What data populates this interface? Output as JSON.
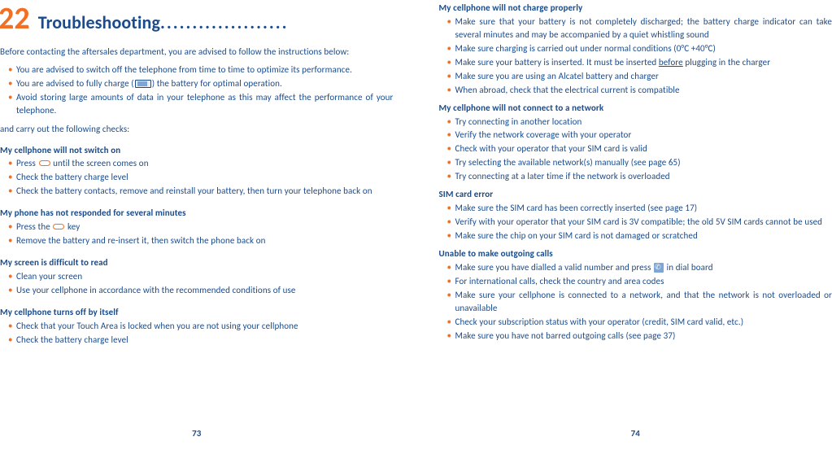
{
  "colors": {
    "text": "#1a4b8c",
    "accent": "#f36f21",
    "background": "#ffffff"
  },
  "leftPage": {
    "chapterNumber": "22",
    "chapterTitle": "Troubleshooting",
    "chapterDots": "....................",
    "intro1": "Before contacting the aftersales department, you are advised to follow the instructions below:",
    "advice1": "You are advised to switch off the telephone from time to time to optimize its performance.",
    "advice2_pre": "You are advised to fully charge (",
    "advice2_post": ") the battery for optimal operation.",
    "advice3": "Avoid storing large amounts of data in your telephone as this may affect the performance of your telephone.",
    "intro2": "and carry out the following checks:",
    "s1_title": "My cellphone will not switch on",
    "s1_b1_pre": "Press ",
    "s1_b1_post": " until the screen comes on",
    "s1_b2": "Check the battery charge level",
    "s1_b3": "Check the battery contacts, remove and reinstall your battery, then turn your telephone back on",
    "s2_title": "My phone has not responded for several minutes",
    "s2_b1_pre": "Press the ",
    "s2_b1_post": " key",
    "s2_b2": "Remove the battery and re-insert it, then switch the phone back on",
    "s3_title": "My screen is difficult to read",
    "s3_b1": "Clean your screen",
    "s3_b2": "Use your cellphone in accordance with the recommended conditions of use",
    "s4_title": "My cellphone turns off by itself",
    "s4_b1": "Check that your Touch Area is locked when you are not using your cellphone",
    "s4_b2": "Check the battery charge level",
    "pageNumber": "73"
  },
  "rightPage": {
    "s5_title": "My cellphone will not charge properly",
    "s5_b1": "Make sure that your battery is not completely discharged; the battery charge indicator can take several minutes and may be accompanied by a quiet whistling sound",
    "s5_b2": "Make sure charging is carried out under normal conditions (0°C +40°C)",
    "s5_b3_pre": "Make sure your battery is inserted. It must be inserted ",
    "s5_b3_underline": "before",
    "s5_b3_post": " plugging in the charger",
    "s5_b4": "Make sure you are using an Alcatel battery and charger",
    "s5_b5": "When abroad, check that the electrical current is compatible",
    "s6_title": "My cellphone will not connect to a network",
    "s6_b1": "Try connecting in another location",
    "s6_b2": "Verify the network coverage with your operator",
    "s6_b3": "Check with your operator that your SIM card is valid",
    "s6_b4": "Try selecting the available network(s) manually (see page 65)",
    "s6_b5": "Try connecting at a later time if the network is overloaded",
    "s7_title": "SIM card error",
    "s7_b1": "Make sure the SIM card has been correctly inserted (see page 17)",
    "s7_b2": "Verify with your operator that your SIM card is 3V compatible; the old 5V SIM cards cannot be used",
    "s7_b3": "Make sure the chip on your SIM card is not damaged or scratched",
    "s8_title": "Unable to make outgoing calls",
    "s8_b1_pre": "Make sure you have dialled a valid number and press ",
    "s8_b1_post": " in dial board",
    "s8_b2": "For international calls, check the country and area codes",
    "s8_b3": "Make sure your cellphone is connected to a network, and that the network is not overloaded or unavailable",
    "s8_b4": "Check your subscription status with your operator (credit, SIM card valid, etc.)",
    "s8_b5": "Make sure you have not barred outgoing calls (see page 37)",
    "pageNumber": "74"
  }
}
